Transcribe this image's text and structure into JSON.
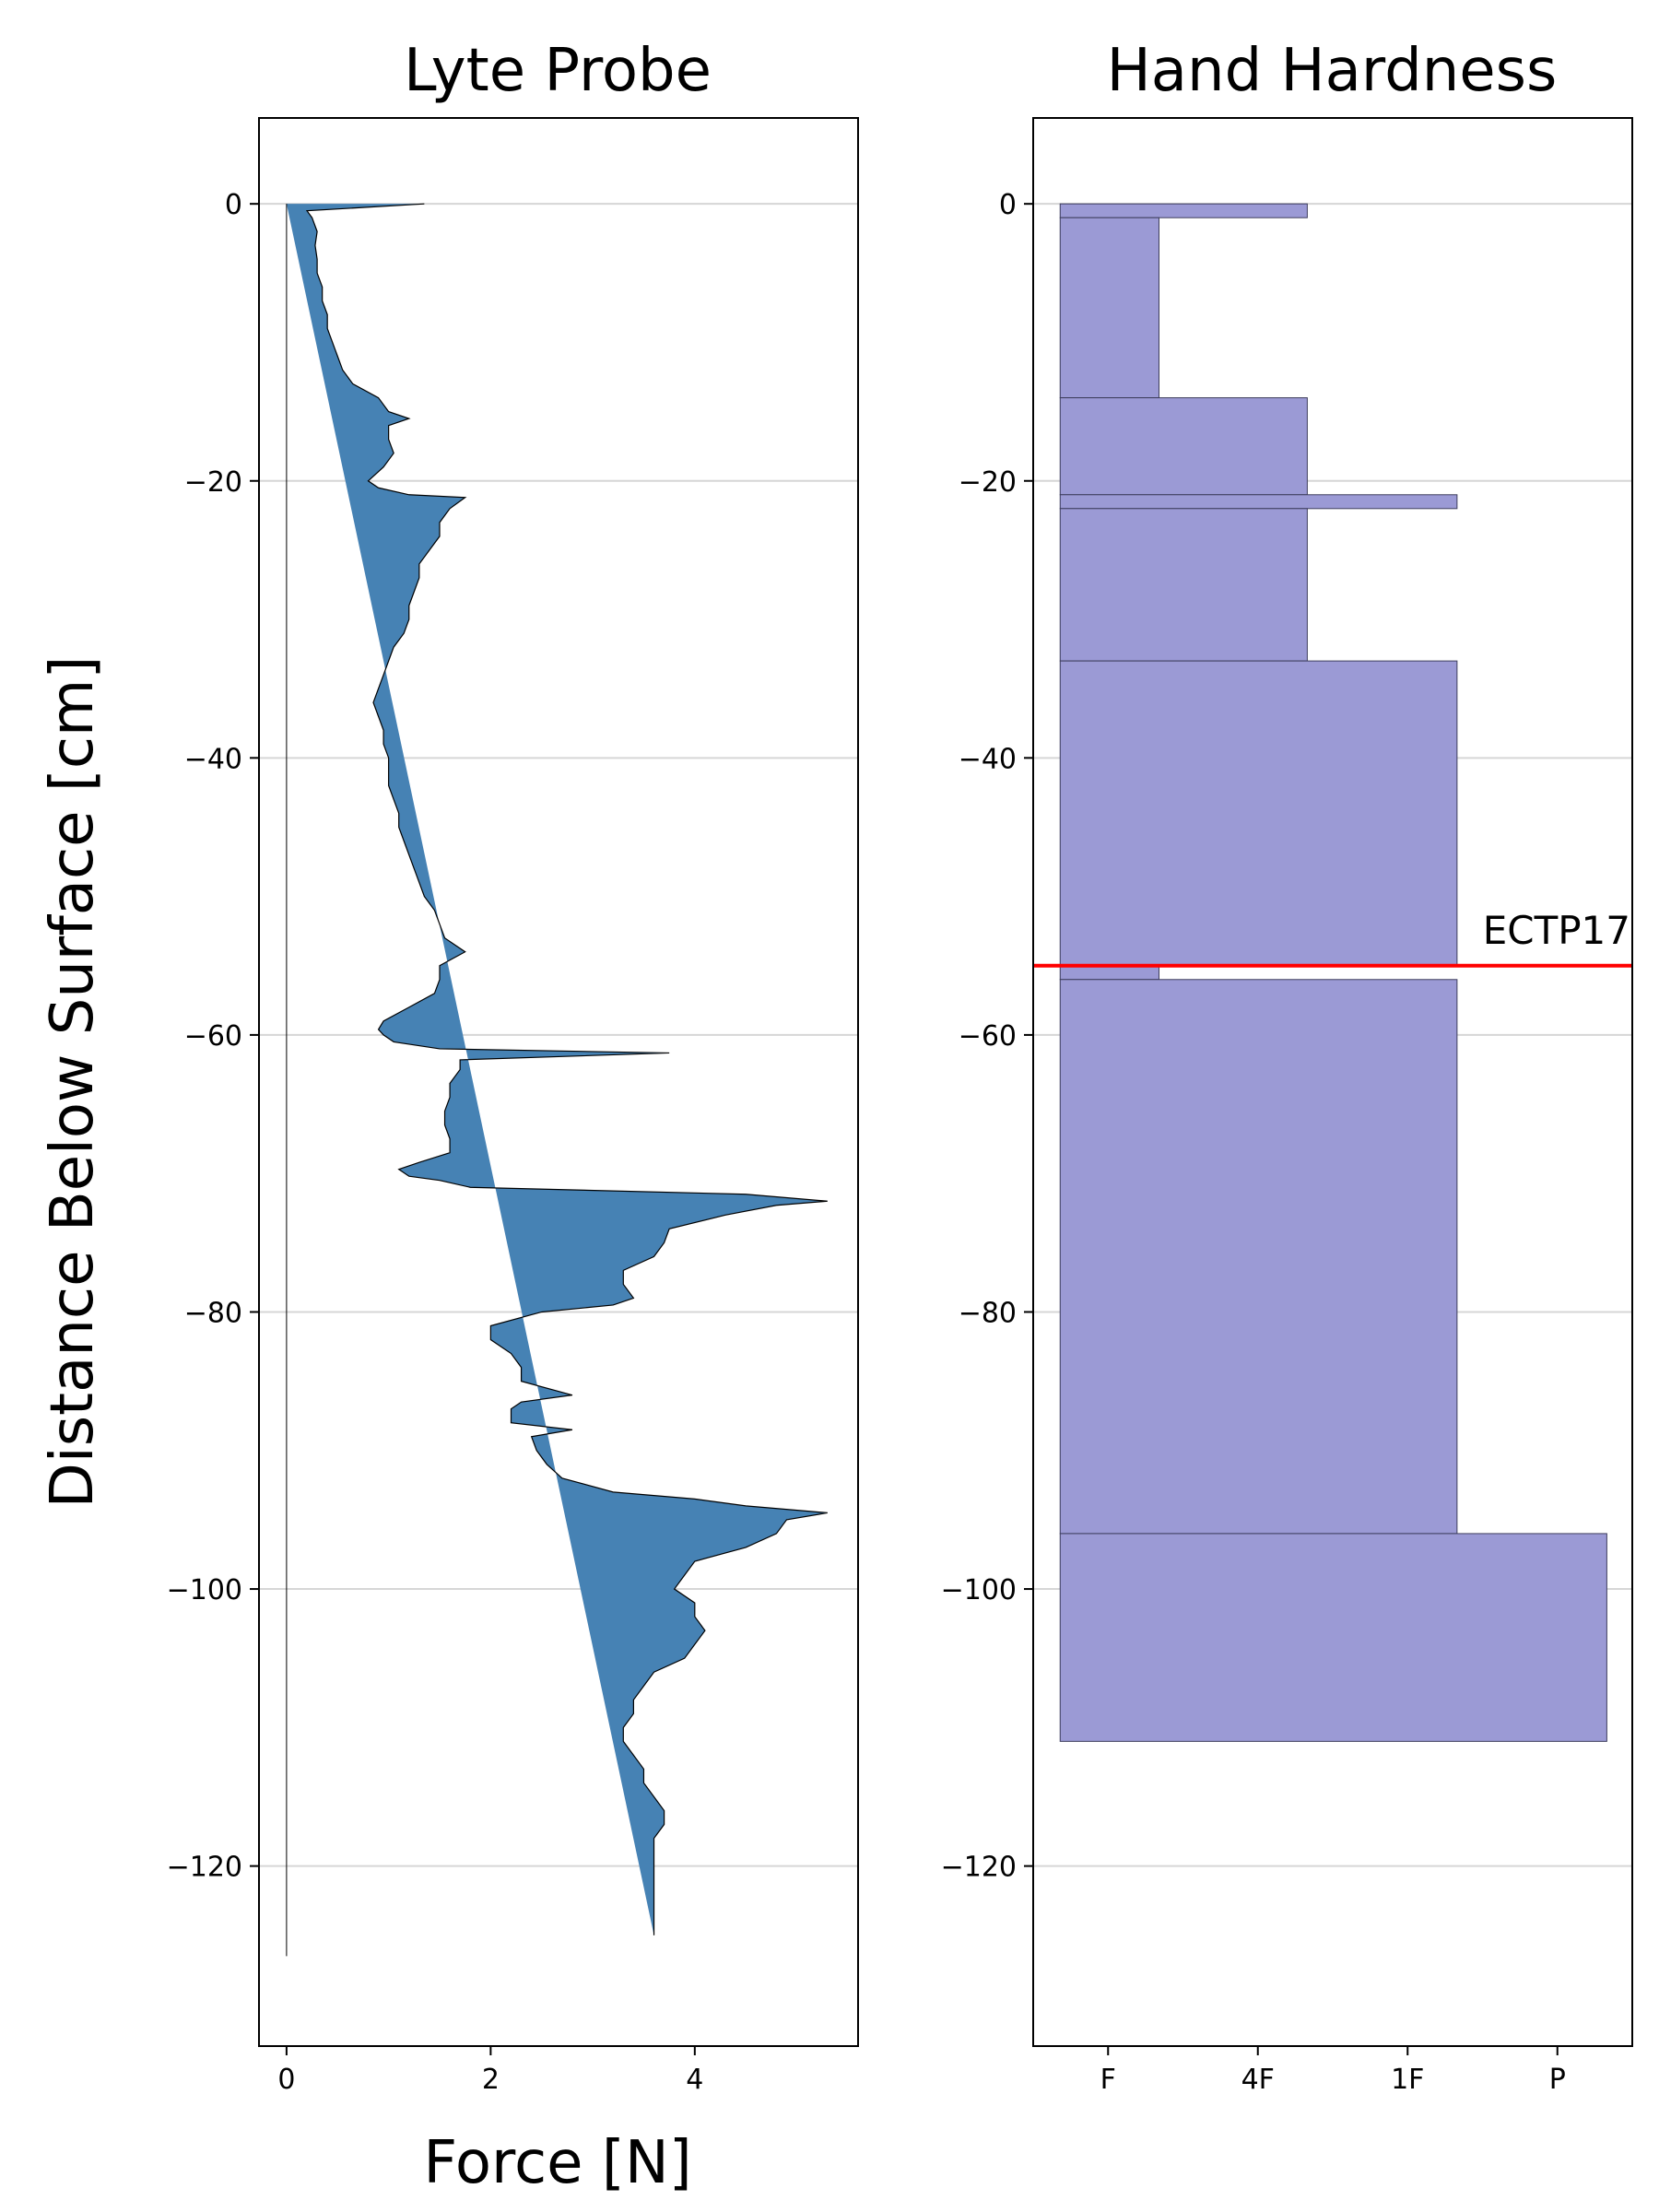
{
  "colors": {
    "probe_fill": "#4682b4",
    "probe_edge": "#000000",
    "hardness_fill": "#9b9ad5",
    "hardness_edge": "#3d3d5c",
    "grid": "#d6d6d6",
    "annotation_line": "#ff0000"
  },
  "chart_data": [
    {
      "type": "area",
      "title": "Lyte Probe",
      "xlabel": "Force [N]",
      "ylabel": "Distance Below Surface [cm]",
      "xlim": [
        -0.27,
        5.6
      ],
      "ylim": [
        -133,
        6.2
      ],
      "xticks": [
        0,
        2,
        4
      ],
      "xtick_labels": [
        "0",
        "2",
        "4"
      ],
      "yticks": [
        0,
        -20,
        -40,
        -60,
        -80,
        -100,
        -120
      ],
      "ytick_labels": [
        "0",
        "−20",
        "−40",
        "−60",
        "−80",
        "−100",
        "−120"
      ],
      "grid": "horizontal",
      "fill_baseline_x": 0,
      "depth_range": [
        0,
        -126.5
      ],
      "profile": {
        "depth": [
          0,
          -0.5,
          -1,
          -2,
          -3,
          -4,
          -5,
          -6,
          -7,
          -8,
          -9,
          -10,
          -11,
          -12,
          -13,
          -14,
          -15,
          -15.5,
          -16,
          -17,
          -18,
          -19,
          -20,
          -20.5,
          -21,
          -21.2,
          -22,
          -23,
          -24,
          -25,
          -26,
          -27,
          -28,
          -29,
          -30,
          -31,
          -32,
          -33,
          -34,
          -35,
          -36,
          -37,
          -38,
          -39,
          -40,
          -41,
          -42,
          -43,
          -44,
          -45,
          -46,
          -47,
          -48,
          -49,
          -50,
          -51,
          -52,
          -53,
          -54,
          -55,
          -56,
          -57,
          -58,
          -59,
          -59.6,
          -60,
          -60.5,
          -61,
          -61.3,
          -61.8,
          -62.5,
          -63.5,
          -64.5,
          -65.5,
          -66.5,
          -67.5,
          -68.5,
          -69.2,
          -69.7,
          -70.2,
          -70.5,
          -71,
          -71.5,
          -72,
          -72.3,
          -73,
          -74,
          -75,
          -76,
          -77,
          -78,
          -79,
          -79.5,
          -80,
          -81,
          -82,
          -83,
          -84,
          -85,
          -86,
          -86.5,
          -87,
          -88,
          -88.5,
          -89,
          -90,
          -91,
          -92,
          -93,
          -93.5,
          -94,
          -94.5,
          -95,
          -96,
          -97,
          -98,
          -99,
          -100,
          -101,
          -102,
          -103,
          -104,
          -105,
          -106,
          -107,
          -108,
          -109,
          -110,
          -111,
          -112,
          -113,
          -114,
          -115,
          -116,
          -117,
          -118,
          -119,
          -120,
          -121,
          -122,
          -123,
          -124,
          -125,
          -126.5
        ],
        "force": [
          1.35,
          0.2,
          0.25,
          0.3,
          0.28,
          0.3,
          0.3,
          0.35,
          0.35,
          0.4,
          0.4,
          0.45,
          0.5,
          0.55,
          0.65,
          0.9,
          1.0,
          1.2,
          1.0,
          1.0,
          1.05,
          0.95,
          0.8,
          0.9,
          1.2,
          1.75,
          1.6,
          1.5,
          1.5,
          1.4,
          1.3,
          1.3,
          1.25,
          1.2,
          1.2,
          1.15,
          1.05,
          1.0,
          0.95,
          0.9,
          0.85,
          0.9,
          0.95,
          0.95,
          1.0,
          1.0,
          1.0,
          1.05,
          1.1,
          1.1,
          1.15,
          1.2,
          1.25,
          1.3,
          1.35,
          1.45,
          1.5,
          1.55,
          1.75,
          1.5,
          1.5,
          1.45,
          1.2,
          0.95,
          0.9,
          0.95,
          1.05,
          1.5,
          3.75,
          1.7,
          1.7,
          1.6,
          1.6,
          1.55,
          1.55,
          1.6,
          1.6,
          1.3,
          1.1,
          1.2,
          1.5,
          1.8,
          4.5,
          5.3,
          4.8,
          4.3,
          3.75,
          3.7,
          3.6,
          3.3,
          3.3,
          3.4,
          3.2,
          2.5,
          2.0,
          2.0,
          2.2,
          2.3,
          2.3,
          2.8,
          2.3,
          2.2,
          2.2,
          2.8,
          2.4,
          2.45,
          2.55,
          2.7,
          3.2,
          4.0,
          4.5,
          5.3,
          4.9,
          4.8,
          4.5,
          4.0,
          3.9,
          3.8,
          4.0,
          4.0,
          4.1,
          4.0,
          3.9,
          3.6,
          3.5,
          3.4,
          3.4,
          3.3,
          3.3,
          3.4,
          3.5,
          3.5,
          3.6,
          3.7,
          3.7,
          3.6,
          3.6,
          3.6,
          3.6,
          3.6,
          3.6,
          3.6,
          3.6
        ]
      }
    },
    {
      "type": "bar",
      "orientation": "horizontal-layers",
      "title": "Hand Hardness",
      "ylabel": "Distance Below Surface [cm]",
      "xlim": [
        0,
        4
      ],
      "ylim": [
        -133,
        6.2
      ],
      "xticks": [
        0.5,
        1.5,
        2.5,
        3.5
      ],
      "xtick_labels": [
        "F",
        "4F",
        "1F",
        "P"
      ],
      "yticks": [
        0,
        -20,
        -40,
        -60,
        -80,
        -100,
        -120
      ],
      "ytick_labels": [
        "0",
        "−20",
        "−40",
        "−60",
        "−80",
        "−100",
        "−120"
      ],
      "grid": "horizontal",
      "bar_left": 0.18,
      "layers": [
        {
          "top": 0,
          "bottom": -1,
          "hardness": 1.83
        },
        {
          "top": -1,
          "bottom": -14,
          "hardness": 0.84
        },
        {
          "top": -14,
          "bottom": -21,
          "hardness": 1.83
        },
        {
          "top": -21,
          "bottom": -22,
          "hardness": 2.83
        },
        {
          "top": -22,
          "bottom": -33,
          "hardness": 1.83
        },
        {
          "top": -33,
          "bottom": -55,
          "hardness": 2.83
        },
        {
          "top": -55,
          "bottom": -56,
          "hardness": 0.84
        },
        {
          "top": -56,
          "bottom": -96,
          "hardness": 2.83
        },
        {
          "top": -96,
          "bottom": -111,
          "hardness": 3.83
        }
      ],
      "annotations": [
        {
          "label": "ECTP17",
          "depth": -55
        }
      ]
    }
  ]
}
